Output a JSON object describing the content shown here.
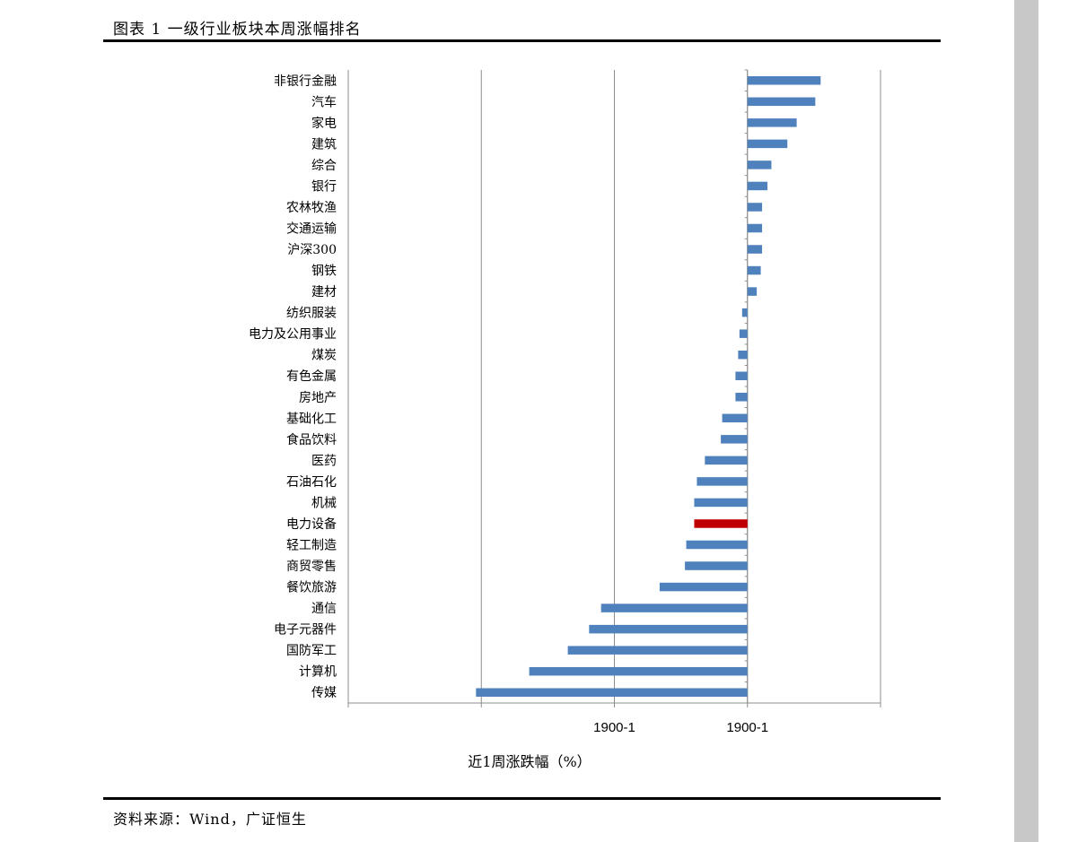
{
  "title": "图表 1 一级行业板块本周涨幅排名",
  "source": "资料来源：Wind，广证恒生",
  "chart_data": {
    "type": "bar",
    "orientation": "horizontal",
    "xlabel": "近1周涨跌幅（%）",
    "x_tick_labels": [
      "",
      "",
      "1900-1",
      "1900-1"
    ],
    "grid": true,
    "colors": {
      "default": "#4f81bd",
      "highlight": "#c00000"
    },
    "highlight": "电力设备",
    "categories": [
      "非银行金融",
      "汽车",
      "家电",
      "建筑",
      "综合",
      "银行",
      "农林牧渔",
      "交通运输",
      "沪深300",
      "钢铁",
      "建材",
      "纺织服装",
      "电力及公用事业",
      "煤炭",
      "有色金属",
      "房地产",
      "基础化工",
      "食品饮料",
      "医药",
      "石油石化",
      "机械",
      "电力设备",
      "轻工制造",
      "商贸零售",
      "餐饮旅游",
      "通信",
      "电子元器件",
      "国防军工",
      "计算机",
      "传媒"
    ],
    "values": [
      5.5,
      5.1,
      3.7,
      3.0,
      1.8,
      1.5,
      1.1,
      1.1,
      1.1,
      1.0,
      0.7,
      -0.4,
      -0.6,
      -0.7,
      -0.9,
      -0.9,
      -1.9,
      -2.0,
      -3.2,
      -3.8,
      -4.0,
      -4.0,
      -4.6,
      -4.7,
      -6.6,
      -11.0,
      -11.9,
      -13.5,
      -16.4,
      -20.4
    ],
    "xlim": [
      -30,
      10
    ]
  }
}
